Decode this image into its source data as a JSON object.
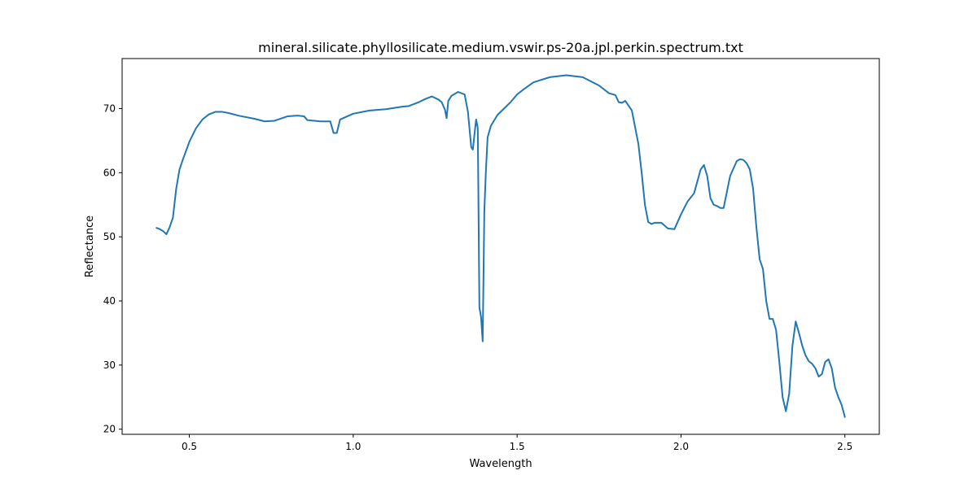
{
  "chart_data": {
    "type": "line",
    "title": "mineral.silicate.phyllosilicate.medium.vswir.ps-20a.jpl.perkin.spectrum.txt",
    "xlabel": "Wavelength",
    "ylabel": "Reflectance",
    "xlim": [
      0.295,
      2.605
    ],
    "ylim": [
      19.2,
      77.8
    ],
    "xticks": [
      0.5,
      1.0,
      1.5,
      2.0,
      2.5
    ],
    "xtick_labels": [
      "0.5",
      "1.0",
      "1.5",
      "2.0",
      "2.5"
    ],
    "yticks": [
      20,
      30,
      40,
      50,
      60,
      70
    ],
    "ytick_labels": [
      "20",
      "30",
      "40",
      "50",
      "60",
      "70"
    ],
    "grid": false,
    "series": [
      {
        "color": "#1f77b4",
        "x": [
          0.4,
          0.41,
          0.42,
          0.43,
          0.44,
          0.45,
          0.46,
          0.47,
          0.48,
          0.5,
          0.52,
          0.54,
          0.56,
          0.58,
          0.6,
          0.62,
          0.65,
          0.7,
          0.73,
          0.76,
          0.8,
          0.83,
          0.85,
          0.86,
          0.9,
          0.93,
          0.94,
          0.95,
          0.96,
          1.0,
          1.05,
          1.1,
          1.15,
          1.17,
          1.2,
          1.22,
          1.24,
          1.26,
          1.27,
          1.28,
          1.285,
          1.29,
          1.3,
          1.32,
          1.34,
          1.35,
          1.36,
          1.365,
          1.37,
          1.375,
          1.38,
          1.385,
          1.39,
          1.395,
          1.4,
          1.405,
          1.41,
          1.42,
          1.44,
          1.46,
          1.48,
          1.5,
          1.52,
          1.55,
          1.6,
          1.65,
          1.7,
          1.75,
          1.78,
          1.8,
          1.81,
          1.82,
          1.83,
          1.85,
          1.87,
          1.88,
          1.89,
          1.9,
          1.91,
          1.92,
          1.94,
          1.96,
          1.98,
          2.0,
          2.02,
          2.04,
          2.06,
          2.07,
          2.08,
          2.09,
          2.1,
          2.11,
          2.12,
          2.13,
          2.15,
          2.17,
          2.18,
          2.19,
          2.2,
          2.21,
          2.22,
          2.23,
          2.24,
          2.25,
          2.26,
          2.27,
          2.28,
          2.29,
          2.3,
          2.31,
          2.32,
          2.33,
          2.34,
          2.35,
          2.36,
          2.37,
          2.38,
          2.39,
          2.4,
          2.41,
          2.42,
          2.43,
          2.44,
          2.45,
          2.46,
          2.47,
          2.48,
          2.49,
          2.5
        ],
        "y": [
          51.4,
          51.2,
          50.9,
          50.4,
          51.5,
          53.0,
          57.5,
          60.5,
          62.0,
          64.8,
          66.9,
          68.3,
          69.1,
          69.5,
          69.5,
          69.3,
          68.9,
          68.4,
          68.0,
          68.1,
          68.8,
          68.9,
          68.8,
          68.2,
          68.0,
          68.0,
          66.2,
          66.2,
          68.3,
          69.2,
          69.7,
          69.9,
          70.3,
          70.4,
          71.0,
          71.5,
          71.9,
          71.4,
          71.0,
          69.8,
          68.5,
          71.2,
          72.0,
          72.6,
          72.2,
          69.5,
          64.0,
          63.6,
          66.0,
          68.3,
          67.0,
          39.0,
          37.5,
          33.7,
          54.0,
          60.5,
          65.5,
          67.3,
          69.0,
          70.0,
          71.0,
          72.2,
          73.0,
          74.1,
          74.9,
          75.2,
          74.9,
          73.6,
          72.4,
          72.1,
          71.0,
          70.9,
          71.2,
          69.7,
          64.5,
          60.0,
          55.0,
          52.3,
          52.0,
          52.2,
          52.2,
          51.3,
          51.2,
          53.5,
          55.5,
          56.8,
          60.5,
          61.2,
          59.5,
          56.0,
          55.0,
          54.8,
          54.5,
          54.5,
          59.5,
          61.8,
          62.1,
          62.0,
          61.5,
          60.5,
          57.5,
          51.5,
          46.5,
          45.0,
          40.0,
          37.2,
          37.2,
          35.5,
          30.5,
          25.0,
          22.8,
          25.5,
          33.0,
          36.8,
          35.0,
          33.0,
          31.5,
          30.6,
          30.2,
          29.5,
          28.2,
          28.6,
          30.5,
          30.9,
          29.5,
          26.5,
          25.0,
          23.8,
          21.9
        ]
      }
    ]
  }
}
